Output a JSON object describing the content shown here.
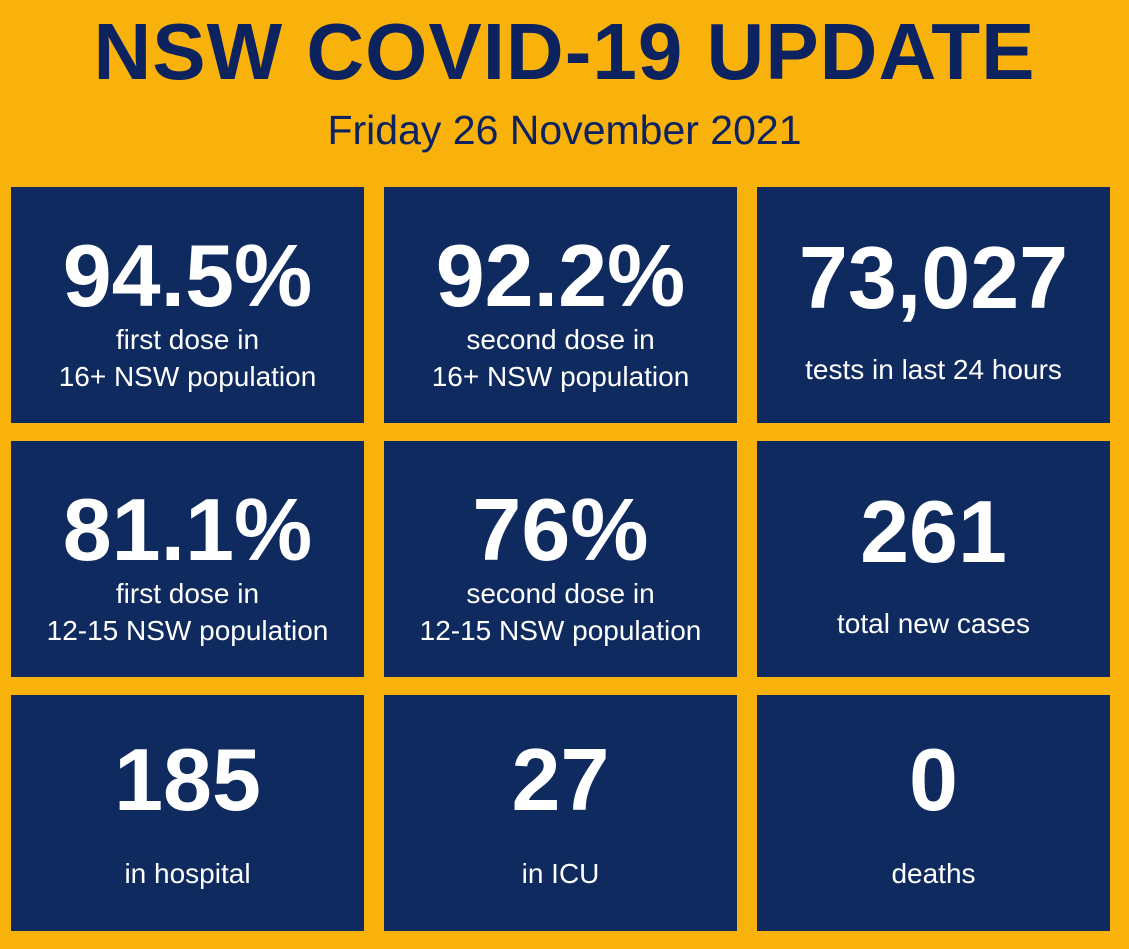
{
  "header": {
    "title": "NSW COVID-19 UPDATE",
    "date": "Friday 26 November 2021"
  },
  "tiles": [
    {
      "value": "94.5%",
      "line1": "first dose in",
      "line2": "16+ NSW population"
    },
    {
      "value": "92.2%",
      "line1": "second dose in",
      "line2": "16+ NSW population"
    },
    {
      "value": "73,027",
      "line1": "tests in last 24 hours"
    },
    {
      "value": "81.1%",
      "line1": "first dose in",
      "line2": "12-15 NSW population"
    },
    {
      "value": "76%",
      "line1": "second dose in",
      "line2": "12-15 NSW population"
    },
    {
      "value": "261",
      "line1": "total new cases"
    },
    {
      "value": "185",
      "line1": "in hospital"
    },
    {
      "value": "27",
      "line1": "in ICU"
    },
    {
      "value": "0",
      "line1": "deaths"
    }
  ],
  "colors": {
    "background": "#f9b20b",
    "tile": "#0e2a5f",
    "title_text": "#0d2360",
    "tile_text": "#ffffff"
  }
}
